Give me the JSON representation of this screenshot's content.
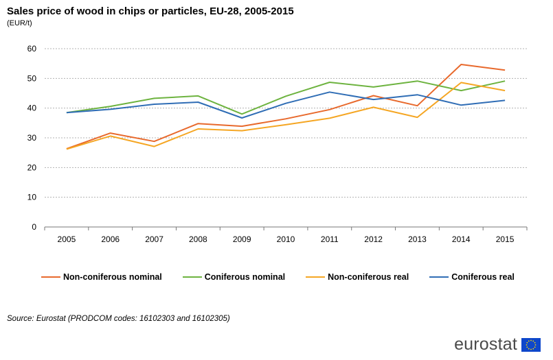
{
  "header": {
    "title": "Sales price of wood in chips or particles, EU-28, 2005-2015",
    "unit": "(EUR/t)"
  },
  "chart_data": {
    "type": "line",
    "title": "Sales price of wood in chips or particles, EU-28, 2005-2015",
    "ylabel": "(EUR/t)",
    "xlabel": "",
    "categories": [
      "2005",
      "2006",
      "2007",
      "2008",
      "2009",
      "2010",
      "2011",
      "2012",
      "2013",
      "2014",
      "2015"
    ],
    "ylim": [
      0,
      60
    ],
    "yticks": [
      0,
      10,
      20,
      30,
      40,
      50,
      60
    ],
    "grid": true,
    "legend_position": "bottom",
    "series": [
      {
        "name": "Non-coniferous nominal",
        "color": "#e8692c",
        "values": [
          26.3,
          31.6,
          28.8,
          34.8,
          33.9,
          36.4,
          39.5,
          44.2,
          40.8,
          54.7,
          52.8
        ]
      },
      {
        "name": "Coniferous nominal",
        "color": "#6db33f",
        "values": [
          38.5,
          40.6,
          43.3,
          44.1,
          38.0,
          44.0,
          48.7,
          47.1,
          49.1,
          45.9,
          49.1
        ]
      },
      {
        "name": "Non-coniferous real",
        "color": "#f5a623",
        "values": [
          26.2,
          30.6,
          27.1,
          33.0,
          32.4,
          34.4,
          36.6,
          40.3,
          36.9,
          48.6,
          45.9
        ]
      },
      {
        "name": "Coniferous real",
        "color": "#2f6db5",
        "values": [
          38.5,
          39.6,
          41.3,
          42.0,
          36.7,
          41.6,
          45.4,
          42.9,
          44.5,
          41.0,
          42.6
        ]
      }
    ]
  },
  "footer": {
    "source": "Source: Eurostat (PRODCOM codes: 16102303 and 16102305)",
    "logo_text": "eurostat"
  },
  "colors": {
    "flag_blue": "#0e47cb",
    "flag_star": "#ffdd00",
    "gridline": "#b0b0b0"
  }
}
